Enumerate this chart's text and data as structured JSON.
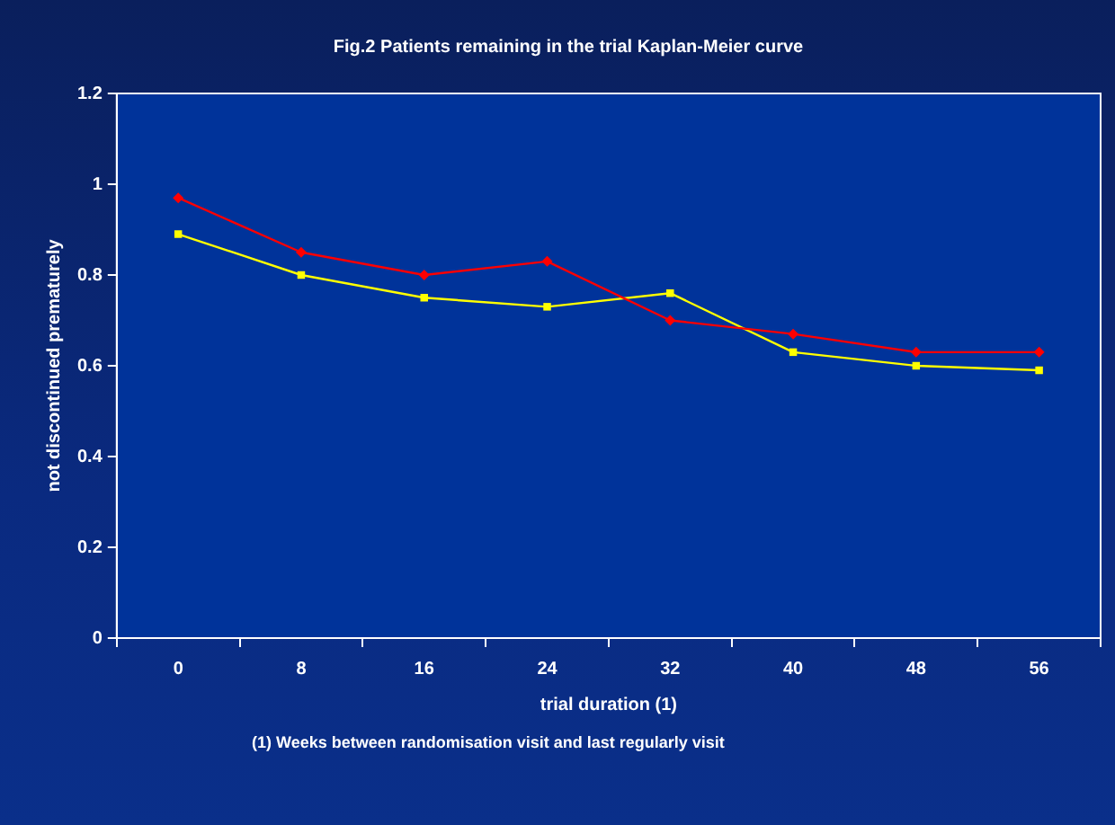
{
  "chart_data": {
    "type": "line",
    "title": "Fig.2 Patients remaining in the trial Kaplan-Meier curve",
    "xlabel": "trial duration (1)",
    "ylabel": "not discontinued prematurely",
    "categories": [
      "0",
      "8",
      "16",
      "24",
      "32",
      "40",
      "48",
      "56"
    ],
    "series": [
      {
        "color": "#ff0000",
        "marker": "diamond",
        "values": [
          0.97,
          0.85,
          0.8,
          0.83,
          0.7,
          0.67,
          0.63,
          0.63
        ]
      },
      {
        "color": "#ffff00",
        "marker": "square",
        "values": [
          0.89,
          0.8,
          0.75,
          0.73,
          0.76,
          0.63,
          0.6,
          0.59
        ]
      }
    ],
    "ylim": [
      0,
      1.2
    ],
    "yticks": [
      0,
      0.2,
      0.4,
      0.6,
      0.8,
      1,
      1.2
    ],
    "grid": false,
    "legend": false,
    "annotations": [
      "(1) Weeks between randomisation visit and last regularly visit"
    ]
  }
}
